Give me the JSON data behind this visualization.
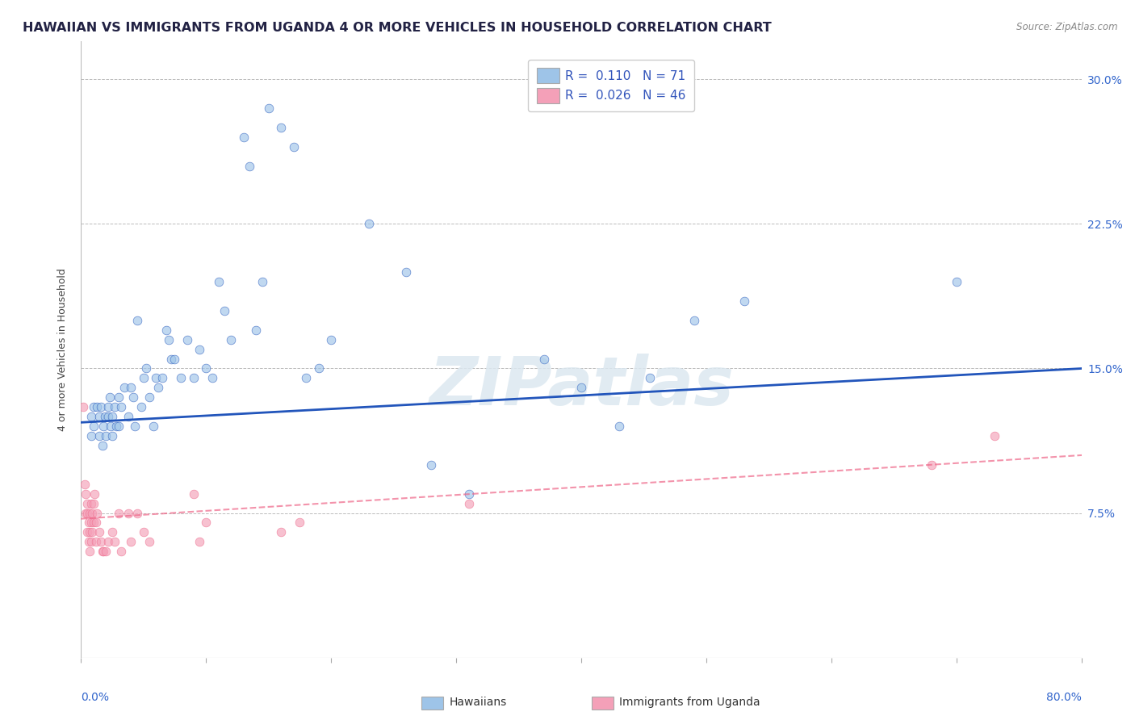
{
  "title": "HAWAIIAN VS IMMIGRANTS FROM UGANDA 4 OR MORE VEHICLES IN HOUSEHOLD CORRELATION CHART",
  "source": "Source: ZipAtlas.com",
  "ylabel": "4 or more Vehicles in Household",
  "ytick_labels": [
    "7.5%",
    "15.0%",
    "22.5%",
    "30.0%"
  ],
  "ytick_values": [
    0.075,
    0.15,
    0.225,
    0.3
  ],
  "xlim": [
    0.0,
    0.8
  ],
  "ylim": [
    0.0,
    0.32
  ],
  "watermark": "ZIPatlas",
  "legend_r1": "R =  0.110   N = 71",
  "legend_r2": "R =  0.026   N = 46",
  "hawaiians_color": "#9ec4e8",
  "uganda_color": "#f4a0b8",
  "hawaiians_trend_color": "#2255bb",
  "uganda_trend_color": "#ee6688",
  "marker_size": 60,
  "marker_alpha": 0.65,
  "title_fontsize": 11.5,
  "axis_label_fontsize": 9,
  "tick_fontsize": 10,
  "grid_color": "#cccccc",
  "background_color": "#ffffff",
  "hawaiians_x": [
    0.008,
    0.008,
    0.01,
    0.01,
    0.013,
    0.015,
    0.015,
    0.016,
    0.017,
    0.018,
    0.019,
    0.02,
    0.022,
    0.022,
    0.023,
    0.024,
    0.025,
    0.025,
    0.027,
    0.028,
    0.03,
    0.03,
    0.032,
    0.035,
    0.038,
    0.04,
    0.042,
    0.043,
    0.045,
    0.048,
    0.05,
    0.052,
    0.055,
    0.058,
    0.06,
    0.062,
    0.065,
    0.068,
    0.07,
    0.072,
    0.075,
    0.08,
    0.085,
    0.09,
    0.095,
    0.1,
    0.105,
    0.11,
    0.115,
    0.12,
    0.13,
    0.135,
    0.14,
    0.145,
    0.15,
    0.16,
    0.17,
    0.18,
    0.19,
    0.2,
    0.23,
    0.26,
    0.28,
    0.31,
    0.37,
    0.4,
    0.43,
    0.455,
    0.49,
    0.53,
    0.7
  ],
  "hawaiians_y": [
    0.125,
    0.115,
    0.12,
    0.13,
    0.13,
    0.115,
    0.125,
    0.13,
    0.11,
    0.12,
    0.125,
    0.115,
    0.13,
    0.125,
    0.135,
    0.12,
    0.125,
    0.115,
    0.13,
    0.12,
    0.135,
    0.12,
    0.13,
    0.14,
    0.125,
    0.14,
    0.135,
    0.12,
    0.175,
    0.13,
    0.145,
    0.15,
    0.135,
    0.12,
    0.145,
    0.14,
    0.145,
    0.17,
    0.165,
    0.155,
    0.155,
    0.145,
    0.165,
    0.145,
    0.16,
    0.15,
    0.145,
    0.195,
    0.18,
    0.165,
    0.27,
    0.255,
    0.17,
    0.195,
    0.285,
    0.275,
    0.265,
    0.145,
    0.15,
    0.165,
    0.225,
    0.2,
    0.1,
    0.085,
    0.155,
    0.14,
    0.12,
    0.145,
    0.175,
    0.185,
    0.195
  ],
  "uganda_x": [
    0.002,
    0.003,
    0.004,
    0.004,
    0.005,
    0.005,
    0.005,
    0.006,
    0.006,
    0.007,
    0.007,
    0.007,
    0.008,
    0.008,
    0.008,
    0.009,
    0.009,
    0.01,
    0.01,
    0.011,
    0.012,
    0.012,
    0.013,
    0.015,
    0.016,
    0.017,
    0.018,
    0.02,
    0.022,
    0.025,
    0.027,
    0.03,
    0.032,
    0.038,
    0.04,
    0.045,
    0.05,
    0.055,
    0.09,
    0.095,
    0.1,
    0.16,
    0.175,
    0.31,
    0.68,
    0.73
  ],
  "uganda_y": [
    0.13,
    0.09,
    0.085,
    0.075,
    0.08,
    0.075,
    0.065,
    0.07,
    0.06,
    0.075,
    0.065,
    0.055,
    0.08,
    0.07,
    0.06,
    0.075,
    0.065,
    0.08,
    0.07,
    0.085,
    0.07,
    0.06,
    0.075,
    0.065,
    0.06,
    0.055,
    0.055,
    0.055,
    0.06,
    0.065,
    0.06,
    0.075,
    0.055,
    0.075,
    0.06,
    0.075,
    0.065,
    0.06,
    0.085,
    0.06,
    0.07,
    0.065,
    0.07,
    0.08,
    0.1,
    0.115
  ],
  "h_trend_x0": 0.0,
  "h_trend_y0": 0.122,
  "h_trend_x1": 0.8,
  "h_trend_y1": 0.15,
  "u_trend_x0": 0.0,
  "u_trend_y0": 0.072,
  "u_trend_x1": 0.8,
  "u_trend_y1": 0.105
}
